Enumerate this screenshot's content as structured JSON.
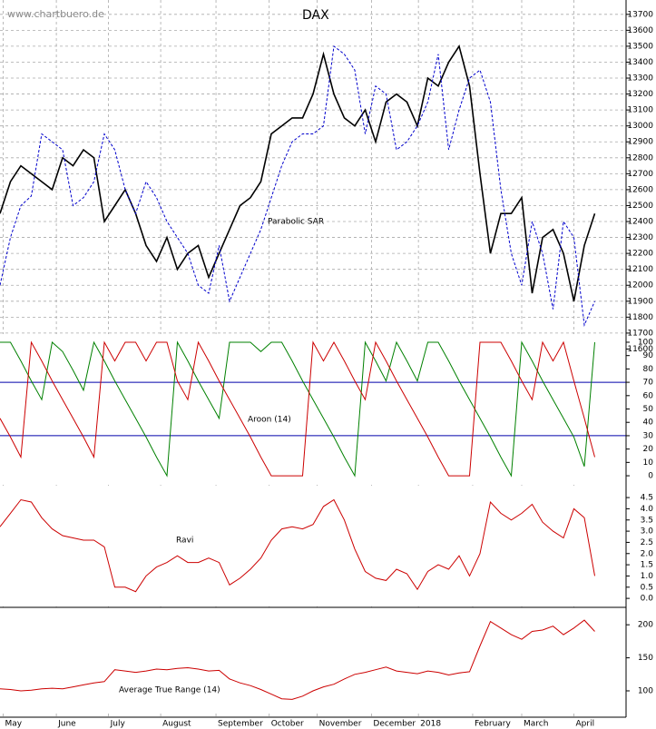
{
  "header": {
    "source": "www.chartbuero.de"
  },
  "chart_data": [
    {
      "type": "line",
      "title": "DAX",
      "ylim": [
        11540,
        13790
      ],
      "grid": true,
      "yticks": [
        11600,
        11700,
        11800,
        11900,
        12000,
        12100,
        12200,
        12300,
        12400,
        12500,
        12600,
        12700,
        12800,
        12900,
        13000,
        13100,
        13200,
        13300,
        13400,
        13500,
        13600,
        13700
      ],
      "series": [
        {
          "color": "#000000",
          "values": [
            12450,
            12650,
            12750,
            12700,
            12650,
            12600,
            12800,
            12750,
            12850,
            12800,
            12400,
            12500,
            12600,
            12450,
            12250,
            12150,
            12300,
            12100,
            12200,
            12250,
            12050,
            12200,
            12350,
            12500,
            12550,
            12650,
            12950,
            13000,
            13050,
            13050,
            13200,
            13450,
            13200,
            13050,
            13000,
            13100,
            12900,
            13150,
            13200,
            13150,
            13000,
            13300,
            13250,
            13400,
            13500,
            13250,
            12700,
            12200,
            12450,
            12450,
            12550,
            11950,
            12300,
            12350,
            12200,
            11900,
            12250,
            12450
          ]
        },
        {
          "name": "Parabolic SAR",
          "color": "#0000cc",
          "dashed": true,
          "values": [
            12000,
            12300,
            12500,
            12560,
            12950,
            12900,
            12850,
            12500,
            12550,
            12650,
            12950,
            12850,
            12600,
            12450,
            12650,
            12550,
            12400,
            12300,
            12200,
            12000,
            11950,
            12250,
            11900,
            12050,
            12200,
            12350,
            12550,
            12750,
            12900,
            12950,
            12950,
            13000,
            13500,
            13450,
            13350,
            12950,
            13250,
            13200,
            12850,
            12900,
            13000,
            13150,
            13450,
            12850,
            13100,
            13300,
            13350,
            13150,
            12600,
            12200,
            12000,
            12400,
            12200,
            11850,
            12400,
            12300,
            11750,
            11900
          ]
        }
      ]
    },
    {
      "type": "line",
      "title": "Aroon (14)",
      "ylim": [
        -5.4,
        106.1
      ],
      "levels": [
        30,
        70
      ],
      "level_color": "#0000aa",
      "yticks": [
        0,
        10,
        20,
        30,
        40,
        50,
        60,
        70,
        80,
        90,
        100
      ],
      "series": [
        {
          "color": "#008000",
          "values": [
            100,
            100,
            86,
            71,
            57,
            100,
            93,
            79,
            64,
            100,
            86,
            71,
            57,
            43,
            29,
            14,
            0,
            100,
            86,
            71,
            57,
            43,
            100,
            100,
            100,
            93,
            100,
            100,
            86,
            71,
            57,
            43,
            29,
            14,
            0,
            100,
            86,
            71,
            100,
            86,
            71,
            100,
            100,
            86,
            71,
            57,
            43,
            29,
            14,
            0,
            100,
            86,
            71,
            57,
            43,
            29,
            7,
            100
          ]
        },
        {
          "color": "#cc0000",
          "values": [
            43,
            29,
            14,
            100,
            86,
            71,
            57,
            43,
            29,
            14,
            100,
            86,
            100,
            100,
            86,
            100,
            100,
            71,
            57,
            100,
            86,
            71,
            57,
            43,
            29,
            14,
            0,
            0,
            0,
            0,
            100,
            86,
            100,
            86,
            71,
            57,
            100,
            86,
            71,
            57,
            43,
            29,
            14,
            0,
            0,
            0,
            100,
            100,
            100,
            86,
            71,
            57,
            100,
            86,
            100,
            71,
            43,
            14
          ]
        }
      ]
    },
    {
      "type": "line",
      "title": "Ravi",
      "ylim": [
        -0.36,
        5.03
      ],
      "yticks": [
        {
          "value": 0,
          "label": "0.0"
        },
        0.5,
        {
          "value": 1,
          "label": "1.0"
        },
        1.5,
        {
          "value": 2,
          "label": "2.0"
        },
        2.5,
        {
          "value": 3,
          "label": "3.0"
        },
        3.5,
        {
          "value": 4,
          "label": "4.0"
        },
        4.5
      ],
      "series": [
        {
          "color": "#cc0000",
          "values": [
            3.2,
            3.8,
            4.4,
            4.3,
            3.6,
            3.1,
            2.8,
            2.7,
            2.6,
            2.6,
            2.3,
            0.5,
            0.5,
            0.3,
            1.0,
            1.4,
            1.6,
            1.9,
            1.6,
            1.6,
            1.8,
            1.6,
            0.6,
            0.9,
            1.3,
            1.8,
            2.6,
            3.1,
            3.2,
            3.1,
            3.3,
            4.1,
            4.4,
            3.5,
            2.2,
            1.2,
            0.9,
            0.8,
            1.3,
            1.1,
            0.4,
            1.2,
            1.5,
            1.3,
            1.9,
            1.0,
            2.0,
            4.3,
            3.8,
            3.5,
            3.8,
            4.2,
            3.4,
            3.0,
            2.7,
            4.0,
            3.6,
            1.0
          ]
        }
      ]
    },
    {
      "type": "line",
      "title": "Average True Range (14)",
      "ylim": [
        67,
        225
      ],
      "yticks": [
        100,
        150,
        200
      ],
      "xlim": [
        0,
        60
      ],
      "xticks": [
        {
          "value": 0.3,
          "label": "May"
        },
        {
          "value": 5.4,
          "label": "June"
        },
        {
          "value": 10.4,
          "label": "July"
        },
        {
          "value": 15.4,
          "label": "August"
        },
        {
          "value": 20.7,
          "label": "September"
        },
        {
          "value": 25.8,
          "label": "October"
        },
        {
          "value": 30.4,
          "label": "November"
        },
        {
          "value": 35.6,
          "label": "December"
        },
        {
          "value": 40.1,
          "label": "2018"
        },
        {
          "value": 45.3,
          "label": "February"
        },
        {
          "value": 50,
          "label": "March"
        },
        {
          "value": 55,
          "label": "April"
        }
      ],
      "series": [
        {
          "color": "#cc0000",
          "values": [
            103,
            102,
            100,
            101,
            103,
            104,
            103,
            106,
            109,
            112,
            114,
            132,
            130,
            128,
            130,
            133,
            132,
            134,
            135,
            133,
            130,
            131,
            118,
            112,
            108,
            102,
            95,
            88,
            87,
            92,
            100,
            106,
            110,
            118,
            125,
            128,
            132,
            136,
            130,
            128,
            126,
            130,
            128,
            124,
            127,
            129,
            168,
            205,
            195,
            185,
            178,
            190,
            192,
            198,
            185,
            195,
            207,
            190
          ]
        }
      ]
    }
  ]
}
